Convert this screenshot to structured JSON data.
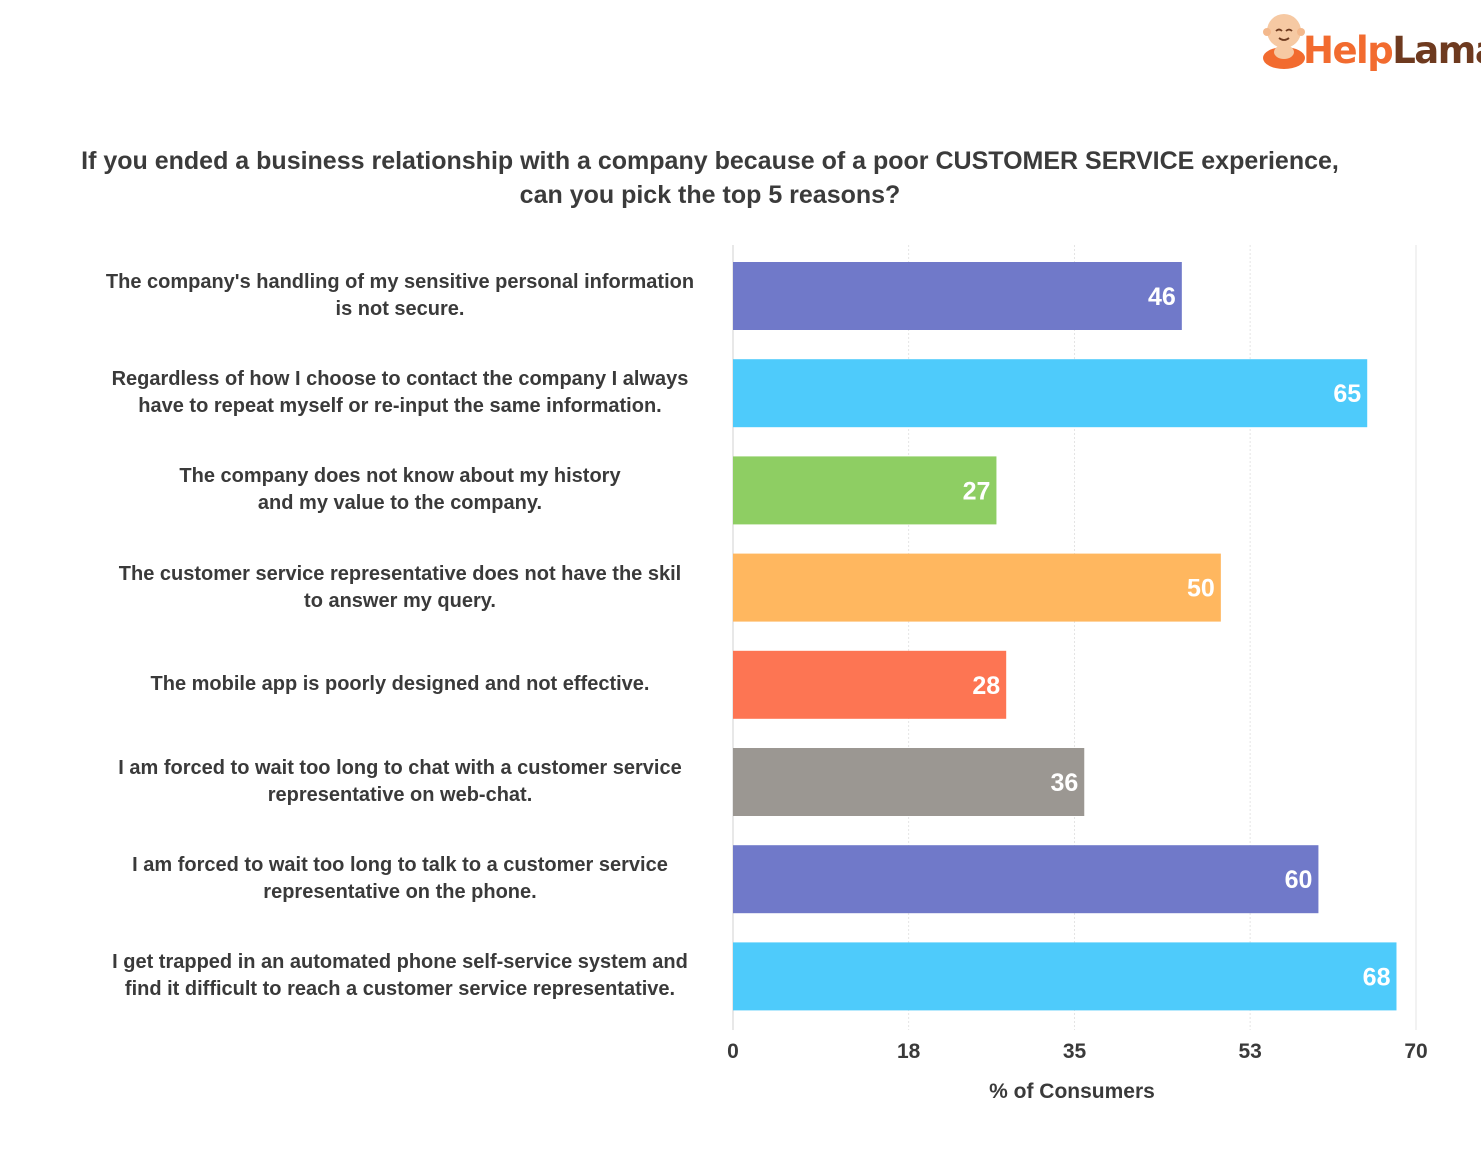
{
  "brand": {
    "name_part1": "Help",
    "name_part2": "Lama",
    "logo_icon": "monk-mascot-icon",
    "colors": {
      "orange": "#f26b2f",
      "brown": "#6e3a1f"
    }
  },
  "chart_data": {
    "type": "bar",
    "orientation": "horizontal",
    "title": [
      "If you ended a business relationship with a company because of a poor CUSTOMER SERVICE experience,",
      "can you pick the top 5 reasons?"
    ],
    "xlabel": "% of Consumers",
    "ylabel": "",
    "xlim": [
      0,
      70
    ],
    "ticks": [
      0,
      18,
      35,
      53,
      70
    ],
    "grid": true,
    "legend": "none",
    "categories": [
      [
        "The company's handling of my sensitive personal information",
        "is not secure."
      ],
      [
        "Regardless of how I choose to contact the company I always",
        "have to repeat myself or re-input the same information."
      ],
      [
        "The company does not know about my history",
        "and my value to the company."
      ],
      [
        "The customer service representative does not have the skil",
        "to answer my query."
      ],
      [
        "The mobile app is poorly designed and not effective."
      ],
      [
        "I am forced to wait too long to chat with a customer service",
        "representative on web-chat."
      ],
      [
        "I am forced to wait too long to talk to a customer service",
        "representative on the phone."
      ],
      [
        "I get trapped in an automated phone self-service system and",
        "find it difficult to reach a customer service representative."
      ]
    ],
    "values": [
      46,
      65,
      27,
      50,
      28,
      36,
      60,
      68
    ],
    "colors": [
      "#7079c9",
      "#4ecbfb",
      "#8ece63",
      "#ffb75f",
      "#fd7553",
      "#9b9792",
      "#7079c9",
      "#4ecbfb"
    ]
  }
}
